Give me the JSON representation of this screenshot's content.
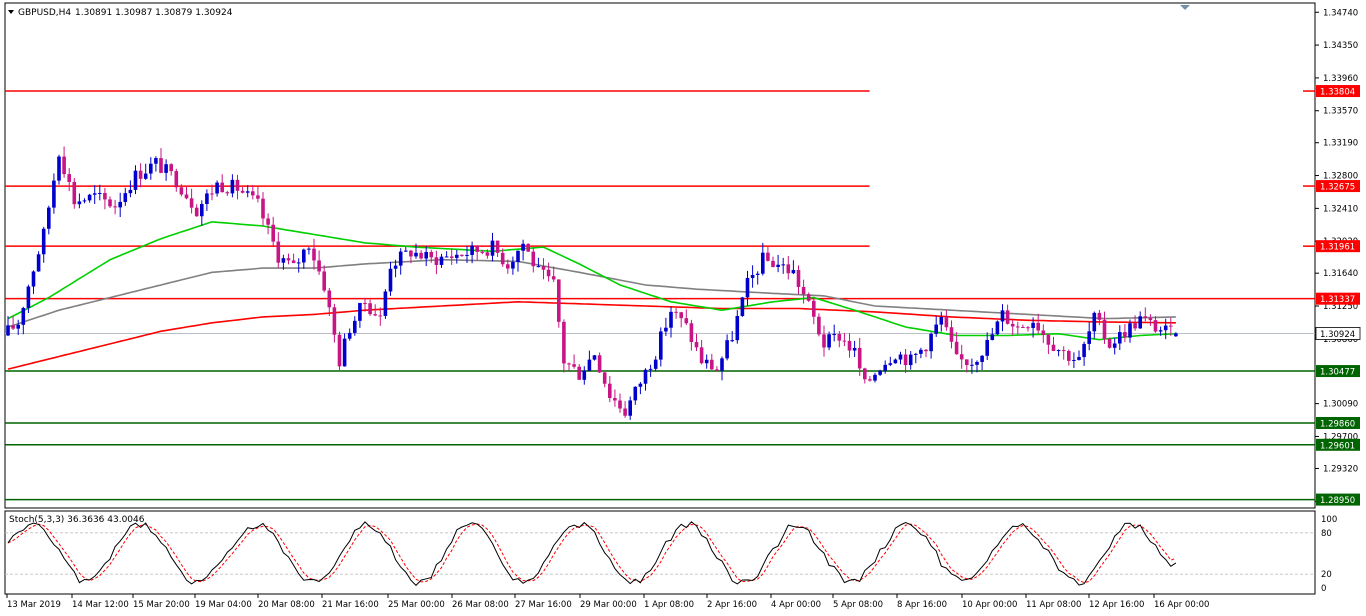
{
  "header": {
    "symbol_label": "GBPUSD,H4",
    "ohlc_label": "1.30891 1.30987 1.30879 1.30924"
  },
  "chart_data": {
    "type": "candlestick",
    "symbol": "GBPUSD",
    "timeframe": "H4",
    "ohlc": {
      "open": 1.30891,
      "high": 1.30987,
      "low": 1.30879,
      "close": 1.30924
    },
    "ylim": [
      1.2885,
      1.3485
    ],
    "y_ticks": [
      "1.34740",
      "1.34350",
      "1.33960",
      "1.33570",
      "1.33190",
      "1.32800",
      "1.32410",
      "1.32020",
      "1.31640",
      "1.31250",
      "1.30860",
      "1.30090",
      "1.29700",
      "1.29320",
      "1.28930"
    ],
    "x_ticks": [
      "13 Mar 2019",
      "14 Mar 12:00",
      "15 Mar 20:00",
      "19 Mar 04:00",
      "20 Mar 08:00",
      "21 Mar 16:00",
      "25 Mar 00:00",
      "26 Mar 08:00",
      "27 Mar 16:00",
      "29 Mar 00:00",
      "1 Apr 08:00",
      "2 Apr 16:00",
      "4 Apr 00:00",
      "5 Apr 08:00",
      "8 Apr 16:00",
      "10 Apr 00:00",
      "11 Apr 08:00",
      "12 Apr 16:00",
      "16 Apr 00:00"
    ],
    "bull_color": "#0000cd",
    "bear_color": "#c71585",
    "price_label": "1.30924",
    "levels": [
      {
        "label": "1.33804",
        "value": 1.33804,
        "color": "#ff0000",
        "extent": 0.66
      },
      {
        "label": "1.32675",
        "value": 1.32675,
        "color": "#ff0000",
        "extent": 0.66
      },
      {
        "label": "1.31961",
        "value": 1.31961,
        "color": "#ff0000",
        "extent": 0.66
      },
      {
        "label": "1.31337",
        "value": 1.31337,
        "color": "#ff0000",
        "extent": 1.0
      },
      {
        "label": "1.30477",
        "value": 1.30477,
        "color": "#006400",
        "extent": 1.0
      },
      {
        "label": "1.29860",
        "value": 1.2986,
        "color": "#006400",
        "extent": 1.0
      },
      {
        "label": "1.29601",
        "value": 1.29601,
        "color": "#006400",
        "extent": 1.0
      },
      {
        "label": "1.28950",
        "value": 1.2895,
        "color": "#006400",
        "extent": 1.0
      }
    ],
    "anchors": [
      [
        0,
        1.309
      ],
      [
        3,
        1.3105
      ],
      [
        5,
        1.315
      ],
      [
        8,
        1.321
      ],
      [
        11,
        1.331
      ],
      [
        14,
        1.325
      ],
      [
        18,
        1.3255
      ],
      [
        22,
        1.3245
      ],
      [
        26,
        1.328
      ],
      [
        30,
        1.3295
      ],
      [
        34,
        1.3275
      ],
      [
        38,
        1.324
      ],
      [
        42,
        1.327
      ],
      [
        46,
        1.3265
      ],
      [
        50,
        1.3245
      ],
      [
        54,
        1.3185
      ],
      [
        57,
        1.317
      ],
      [
        60,
        1.32
      ],
      [
        63,
        1.315
      ],
      [
        66,
        1.306
      ],
      [
        68,
        1.31
      ],
      [
        71,
        1.313
      ],
      [
        74,
        1.311
      ],
      [
        76,
        1.3175
      ],
      [
        80,
        1.319
      ],
      [
        84,
        1.318
      ],
      [
        88,
        1.3185
      ],
      [
        92,
        1.319
      ],
      [
        96,
        1.3195
      ],
      [
        99,
        1.3175
      ],
      [
        102,
        1.32
      ],
      [
        105,
        1.3165
      ],
      [
        108,
        1.315
      ],
      [
        110,
        1.306
      ],
      [
        113,
        1.3045
      ],
      [
        116,
        1.307
      ],
      [
        119,
        1.302
      ],
      [
        122,
        1.3
      ],
      [
        125,
        1.3035
      ],
      [
        128,
        1.307
      ],
      [
        131,
        1.312
      ],
      [
        134,
        1.31
      ],
      [
        137,
        1.306
      ],
      [
        140,
        1.305
      ],
      [
        143,
        1.309
      ],
      [
        146,
        1.315
      ],
      [
        149,
        1.318
      ],
      [
        152,
        1.3175
      ],
      [
        155,
        1.3165
      ],
      [
        158,
        1.3125
      ],
      [
        161,
        1.308
      ],
      [
        164,
        1.309
      ],
      [
        167,
        1.307
      ],
      [
        169,
        1.303
      ],
      [
        172,
        1.3055
      ],
      [
        175,
        1.307
      ],
      [
        178,
        1.306
      ],
      [
        181,
        1.308
      ],
      [
        184,
        1.311
      ],
      [
        187,
        1.306
      ],
      [
        190,
        1.306
      ],
      [
        193,
        1.308
      ],
      [
        196,
        1.3115
      ],
      [
        199,
        1.31
      ],
      [
        202,
        1.311
      ],
      [
        205,
        1.3085
      ],
      [
        208,
        1.307
      ],
      [
        211,
        1.306
      ],
      [
        214,
        1.311
      ],
      [
        217,
        1.308
      ],
      [
        220,
        1.3095
      ],
      [
        223,
        1.311
      ],
      [
        226,
        1.31
      ],
      [
        229,
        1.3092
      ]
    ],
    "ma_fast": [
      [
        0,
        1.311
      ],
      [
        8,
        1.3135
      ],
      [
        20,
        1.318
      ],
      [
        30,
        1.3205
      ],
      [
        40,
        1.3225
      ],
      [
        50,
        1.322
      ],
      [
        60,
        1.321
      ],
      [
        70,
        1.32
      ],
      [
        80,
        1.3195
      ],
      [
        95,
        1.319
      ],
      [
        105,
        1.3195
      ],
      [
        112,
        1.3175
      ],
      [
        120,
        1.315
      ],
      [
        130,
        1.313
      ],
      [
        140,
        1.312
      ],
      [
        150,
        1.313
      ],
      [
        158,
        1.3135
      ],
      [
        166,
        1.312
      ],
      [
        176,
        1.31
      ],
      [
        186,
        1.309
      ],
      [
        196,
        1.309
      ],
      [
        206,
        1.3092
      ],
      [
        214,
        1.3085
      ],
      [
        222,
        1.309
      ],
      [
        229,
        1.3092
      ]
    ],
    "ma_mid": [
      [
        0,
        1.31
      ],
      [
        10,
        1.312
      ],
      [
        20,
        1.3135
      ],
      [
        30,
        1.315
      ],
      [
        40,
        1.3165
      ],
      [
        50,
        1.317
      ],
      [
        60,
        1.317
      ],
      [
        70,
        1.3175
      ],
      [
        85,
        1.318
      ],
      [
        100,
        1.3178
      ],
      [
        112,
        1.3165
      ],
      [
        125,
        1.315
      ],
      [
        135,
        1.3145
      ],
      [
        150,
        1.314
      ],
      [
        160,
        1.3137
      ],
      [
        170,
        1.3125
      ],
      [
        185,
        1.312
      ],
      [
        200,
        1.3115
      ],
      [
        215,
        1.311
      ],
      [
        229,
        1.3112
      ]
    ],
    "ma_slow": [
      [
        0,
        1.305
      ],
      [
        10,
        1.3065
      ],
      [
        20,
        1.308
      ],
      [
        30,
        1.3095
      ],
      [
        40,
        1.3105
      ],
      [
        50,
        1.3112
      ],
      [
        60,
        1.3115
      ],
      [
        70,
        1.312
      ],
      [
        85,
        1.3125
      ],
      [
        100,
        1.313
      ],
      [
        110,
        1.3128
      ],
      [
        125,
        1.3125
      ],
      [
        140,
        1.3122
      ],
      [
        155,
        1.3122
      ],
      [
        170,
        1.3118
      ],
      [
        185,
        1.3112
      ],
      [
        200,
        1.3108
      ],
      [
        215,
        1.3106
      ],
      [
        229,
        1.3105
      ]
    ],
    "stochastic": {
      "label": "Stoch(5,3,3) 36.3636 43.0046",
      "main": 36.3636,
      "signal": 43.0046,
      "levels": [
        20,
        80
      ],
      "scale_labels": [
        "100",
        "80",
        "20",
        "0"
      ],
      "main_color": "#000000",
      "signal_color": "#ff0000"
    }
  }
}
